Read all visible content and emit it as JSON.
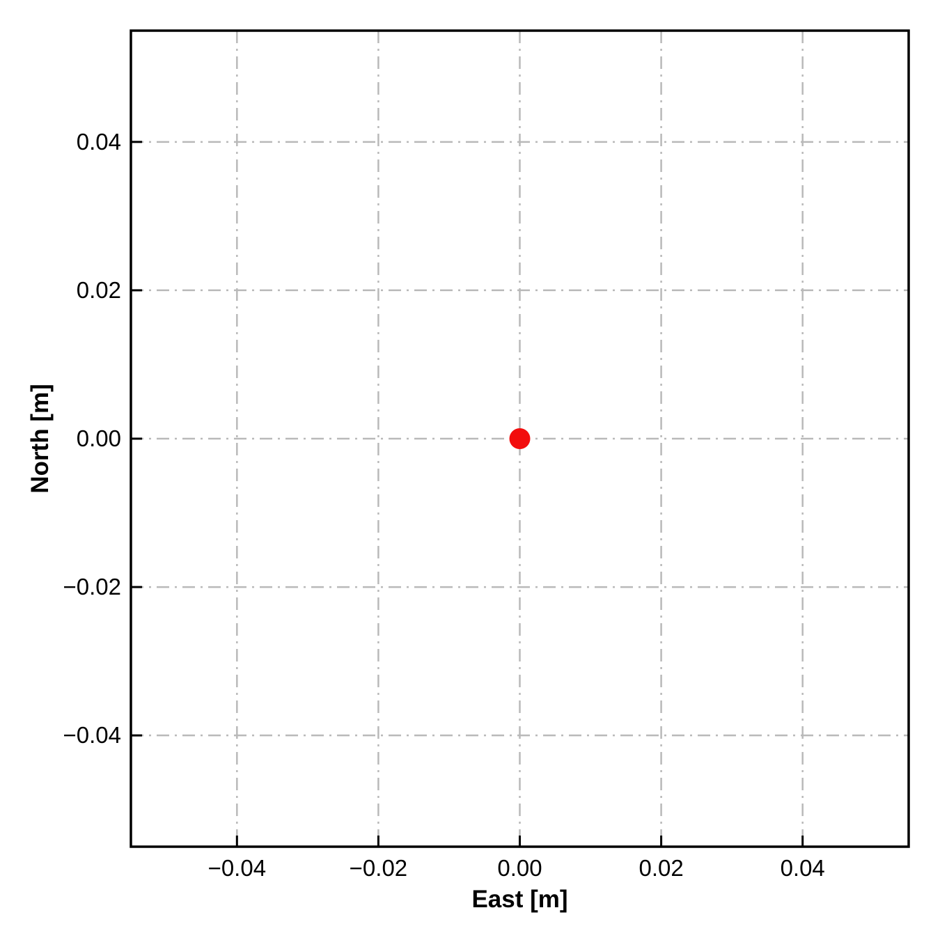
{
  "chart_data": {
    "type": "scatter",
    "title": "",
    "xlabel": "East [m]",
    "ylabel": "North [m]",
    "xlim": [
      -0.055,
      0.055
    ],
    "ylim": [
      -0.055,
      0.055
    ],
    "xticks": {
      "values": [
        -0.04,
        -0.02,
        0.0,
        0.02,
        0.04
      ],
      "labels": [
        "−0.04",
        "−0.02",
        "0.00",
        "0.02",
        "0.04"
      ]
    },
    "yticks": {
      "values": [
        0.04,
        0.02,
        0.0,
        -0.02,
        -0.04
      ],
      "labels": [
        "0.04",
        "0.02",
        "0.00",
        "−0.02",
        "−0.04"
      ]
    },
    "grid": {
      "visible": true,
      "style": "dash-dot",
      "color": "#b9b9b9"
    },
    "points": [
      {
        "x": 0.0,
        "y": 0.0
      }
    ],
    "marker": {
      "shape": "circle",
      "color": "#f20d0d",
      "radius_px": 15
    },
    "spine_color": "#000000",
    "tick_label_color": "#000000",
    "legend": null
  }
}
